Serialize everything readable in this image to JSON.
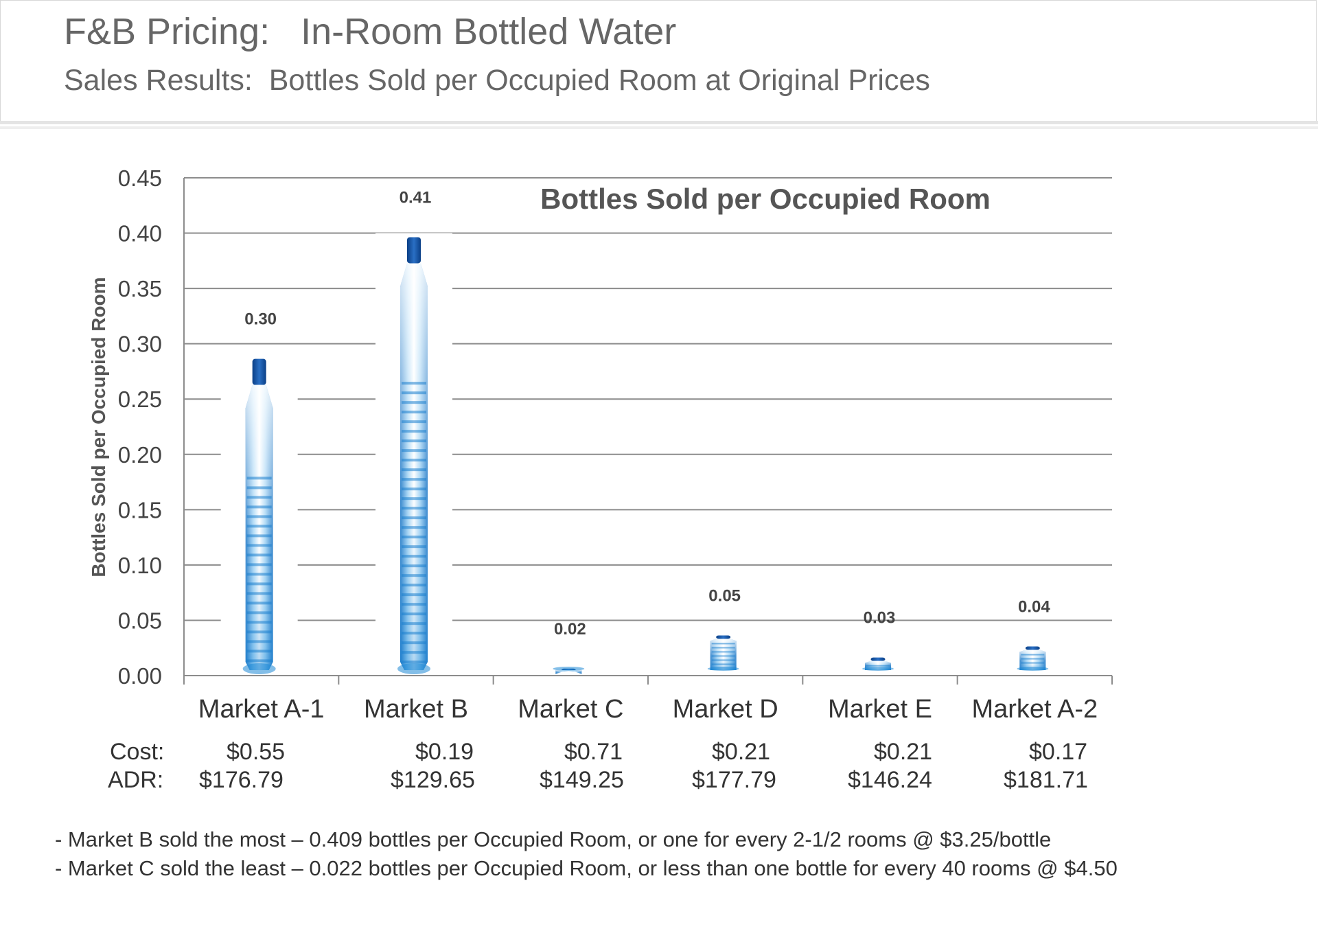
{
  "header": {
    "title": "F&B Pricing:   In-Room Bottled Water",
    "subtitle": "Sales Results:  Bottles Sold per Occupied Room at Original Prices"
  },
  "chart_data": {
    "type": "bar",
    "title": "Bottles Sold per Occupied Room",
    "ylabel": "Bottles Sold per Occupied Room",
    "xlabel": "",
    "ylim": [
      0,
      0.45
    ],
    "yticks": [
      "0.00",
      "0.05",
      "0.10",
      "0.15",
      "0.20",
      "0.25",
      "0.30",
      "0.35",
      "0.40",
      "0.45"
    ],
    "categories": [
      "Market A-1",
      "Market B",
      "Market C",
      "Market D",
      "Market E",
      "Market A-2"
    ],
    "values": [
      0.3,
      0.41,
      0.02,
      0.05,
      0.03,
      0.04
    ],
    "data_labels": [
      "0.30",
      "0.41",
      "0.02",
      "0.05",
      "0.03",
      "0.04"
    ],
    "grid": true,
    "bar_style": "water-bottle"
  },
  "table": {
    "cost_label": "Cost:",
    "adr_label": "ADR:",
    "cost": [
      "$0.55",
      "$0.19",
      "$0.71",
      "$0.21",
      "$0.21",
      "$0.17"
    ],
    "adr": [
      "$176.79",
      "$129.65",
      "$149.25",
      "$177.79",
      "$146.24",
      "$181.71"
    ]
  },
  "notes": [
    "- Market B sold the most – 0.409 bottles per Occupied Room, or one for every 2-1/2 rooms @ $3.25/bottle",
    "- Market C sold the least – 0.022 bottles per Occupied Room, or less than one bottle for every 40 rooms @ $4.50"
  ],
  "colors": {
    "cap": "#0d4fa0",
    "water": "#1e88d6",
    "grid": "#8c8c8c",
    "text": "#333333"
  }
}
